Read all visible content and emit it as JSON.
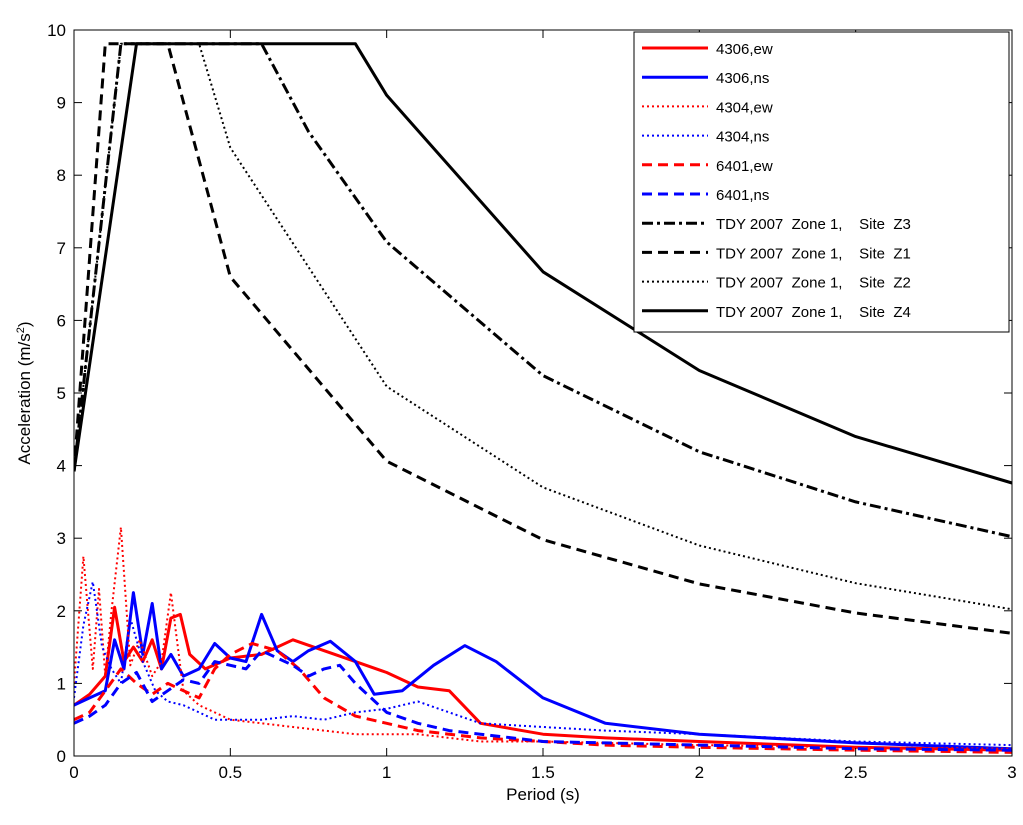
{
  "chart_data": {
    "type": "line",
    "title": "",
    "xlabel": "Period (s)",
    "ylabel_main": "Acceleration (m/s",
    "ylabel_sup": "2",
    "ylabel_close": ")",
    "xlim": [
      0,
      3
    ],
    "ylim": [
      0,
      10
    ],
    "xticks": [
      0,
      0.5,
      1,
      1.5,
      2,
      2.5,
      3
    ],
    "xtick_labels": [
      "0",
      "0.5",
      "1",
      "1.5",
      "2",
      "2.5",
      "3"
    ],
    "yticks": [
      0,
      1,
      2,
      3,
      4,
      5,
      6,
      7,
      8,
      9,
      10
    ],
    "ytick_labels": [
      "0",
      "1",
      "2",
      "3",
      "4",
      "5",
      "6",
      "7",
      "8",
      "9",
      "10"
    ],
    "grid": false,
    "legend_position": "top-right",
    "series": [
      {
        "name": "4306,ew",
        "color": "#ff0000",
        "style": "solid",
        "width": 3,
        "x": [
          0,
          0.05,
          0.1,
          0.13,
          0.16,
          0.19,
          0.22,
          0.25,
          0.28,
          0.31,
          0.34,
          0.37,
          0.42,
          0.5,
          0.6,
          0.7,
          0.8,
          0.9,
          1.0,
          1.1,
          1.2,
          1.3,
          1.5,
          1.7,
          2.0,
          2.5,
          3.0
        ],
        "y": [
          0.7,
          0.85,
          1.1,
          2.05,
          1.3,
          1.5,
          1.3,
          1.6,
          1.2,
          1.9,
          1.95,
          1.4,
          1.2,
          1.35,
          1.4,
          1.6,
          1.45,
          1.3,
          1.15,
          0.95,
          0.9,
          0.45,
          0.3,
          0.25,
          0.2,
          0.12,
          0.08
        ]
      },
      {
        "name": "4306,ns",
        "color": "#0000ff",
        "style": "solid",
        "width": 3,
        "x": [
          0,
          0.05,
          0.1,
          0.13,
          0.16,
          0.19,
          0.22,
          0.25,
          0.28,
          0.31,
          0.35,
          0.4,
          0.45,
          0.5,
          0.55,
          0.6,
          0.65,
          0.7,
          0.75,
          0.82,
          0.9,
          0.96,
          1.05,
          1.15,
          1.25,
          1.35,
          1.5,
          1.7,
          2.0,
          2.5,
          3.0
        ],
        "y": [
          0.7,
          0.8,
          0.9,
          1.6,
          1.2,
          2.25,
          1.4,
          2.1,
          1.2,
          1.4,
          1.1,
          1.2,
          1.55,
          1.35,
          1.3,
          1.95,
          1.45,
          1.3,
          1.45,
          1.58,
          1.3,
          0.85,
          0.9,
          1.25,
          1.52,
          1.3,
          0.8,
          0.45,
          0.3,
          0.18,
          0.1
        ]
      },
      {
        "name": "4304,ew",
        "color": "#ff0000",
        "style": "dotted",
        "width": 2,
        "x": [
          0,
          0.03,
          0.06,
          0.08,
          0.1,
          0.12,
          0.15,
          0.18,
          0.21,
          0.25,
          0.28,
          0.31,
          0.35,
          0.4,
          0.45,
          0.5,
          0.6,
          0.7,
          0.8,
          0.9,
          1.0,
          1.1,
          1.2,
          1.3,
          1.5,
          1.7,
          2.0,
          2.5,
          3.0
        ],
        "y": [
          1.0,
          2.75,
          1.2,
          2.3,
          1.1,
          2.0,
          3.15,
          1.25,
          1.6,
          1.1,
          1.3,
          2.25,
          0.9,
          0.7,
          0.6,
          0.5,
          0.45,
          0.4,
          0.35,
          0.3,
          0.3,
          0.3,
          0.25,
          0.2,
          0.2,
          0.18,
          0.15,
          0.12,
          0.1
        ]
      },
      {
        "name": "4304,ns",
        "color": "#0000ff",
        "style": "dotted",
        "width": 2,
        "x": [
          0,
          0.03,
          0.06,
          0.09,
          0.12,
          0.15,
          0.18,
          0.22,
          0.26,
          0.3,
          0.35,
          0.4,
          0.45,
          0.5,
          0.6,
          0.7,
          0.8,
          0.9,
          1.0,
          1.1,
          1.2,
          1.3,
          1.5,
          1.7,
          2.0,
          2.5,
          3.0
        ],
        "y": [
          0.8,
          1.8,
          2.4,
          1.5,
          1.2,
          1.0,
          1.9,
          1.3,
          0.9,
          0.75,
          0.7,
          0.6,
          0.5,
          0.5,
          0.5,
          0.55,
          0.5,
          0.6,
          0.65,
          0.75,
          0.6,
          0.45,
          0.4,
          0.35,
          0.3,
          0.2,
          0.15
        ]
      },
      {
        "name": "6401,ew",
        "color": "#ff0000",
        "style": "dashed",
        "width": 3,
        "x": [
          0,
          0.05,
          0.1,
          0.15,
          0.2,
          0.25,
          0.3,
          0.35,
          0.4,
          0.45,
          0.5,
          0.57,
          0.65,
          0.72,
          0.8,
          0.9,
          1.0,
          1.1,
          1.2,
          1.3,
          1.5,
          1.7,
          2.0,
          2.5,
          3.0
        ],
        "y": [
          0.5,
          0.6,
          0.9,
          1.2,
          1.0,
          0.85,
          1.0,
          0.9,
          0.8,
          1.2,
          1.4,
          1.55,
          1.45,
          1.2,
          0.8,
          0.55,
          0.45,
          0.35,
          0.3,
          0.25,
          0.2,
          0.15,
          0.12,
          0.08,
          0.05
        ]
      },
      {
        "name": "6401,ns",
        "color": "#0000ff",
        "style": "dashed",
        "width": 3,
        "x": [
          0,
          0.05,
          0.1,
          0.15,
          0.2,
          0.25,
          0.3,
          0.35,
          0.4,
          0.45,
          0.5,
          0.55,
          0.6,
          0.7,
          0.75,
          0.8,
          0.85,
          0.9,
          1.0,
          1.1,
          1.2,
          1.3,
          1.5,
          1.7,
          2.0,
          2.5,
          3.0
        ],
        "y": [
          0.45,
          0.55,
          0.7,
          1.0,
          1.15,
          0.75,
          0.9,
          1.05,
          1.0,
          1.3,
          1.25,
          1.2,
          1.45,
          1.25,
          1.1,
          1.2,
          1.25,
          1.0,
          0.6,
          0.45,
          0.35,
          0.3,
          0.2,
          0.18,
          0.15,
          0.1,
          0.08
        ]
      },
      {
        "name": "TDY 2007  Zone 1,    Site  Z3",
        "color": "#000000",
        "style": "dashdot",
        "width": 3,
        "x": [
          0,
          0.15,
          0.6,
          0.75,
          1.0,
          1.5,
          2.0,
          2.5,
          3.0
        ],
        "y": [
          3.92,
          9.81,
          9.81,
          8.6,
          7.08,
          5.24,
          4.19,
          3.5,
          3.02
        ]
      },
      {
        "name": "TDY 2007  Zone 1,    Site  Z1",
        "color": "#000000",
        "style": "dashed",
        "width": 3,
        "x": [
          0,
          0.1,
          0.3,
          0.5,
          1.0,
          1.5,
          2.0,
          2.5,
          3.0
        ],
        "y": [
          3.92,
          9.81,
          9.81,
          6.6,
          4.06,
          2.98,
          2.37,
          1.97,
          1.69
        ]
      },
      {
        "name": "TDY 2007  Zone 1,    Site  Z2",
        "color": "#000000",
        "style": "dotted",
        "width": 2,
        "x": [
          0,
          0.15,
          0.4,
          0.5,
          1.0,
          1.5,
          2.0,
          2.5,
          3.0
        ],
        "y": [
          3.92,
          9.81,
          9.81,
          8.38,
          5.09,
          3.7,
          2.9,
          2.38,
          2.02
        ]
      },
      {
        "name": "TDY 2007  Zone 1,    Site  Z4",
        "color": "#000000",
        "style": "solid",
        "width": 3,
        "x": [
          0,
          0.2,
          0.9,
          1.0,
          1.5,
          2.0,
          2.5,
          3.0
        ],
        "y": [
          3.92,
          9.81,
          9.81,
          9.1,
          6.67,
          5.31,
          4.4,
          3.76
        ]
      }
    ]
  }
}
